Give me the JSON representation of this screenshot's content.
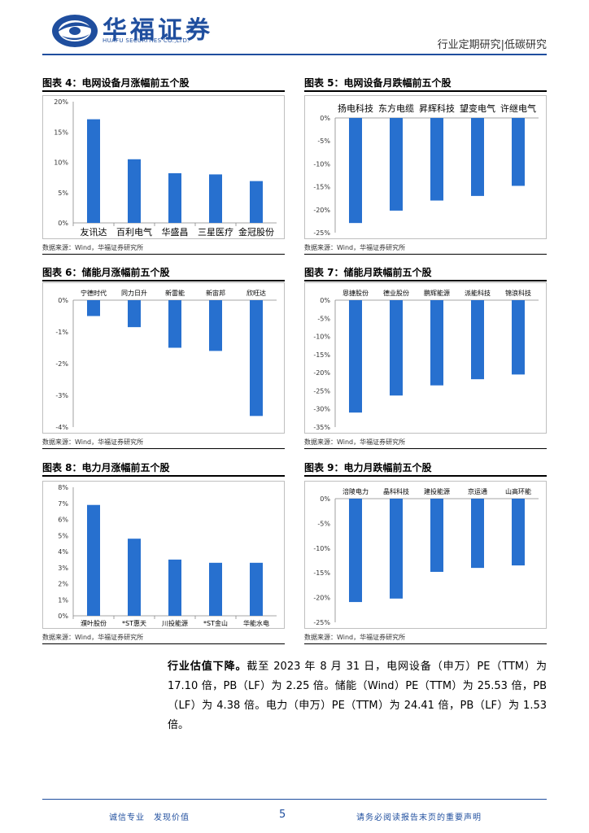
{
  "header": {
    "brand_cn": "华福证券",
    "brand_en": "HUAFU SECURITIES CO.,LTD.",
    "report_type": "行业定期研究|低碳研究"
  },
  "colors": {
    "brand": "#1f4e9e",
    "bar": "#2770cf"
  },
  "charts": [
    {
      "id": "c4",
      "title": "图表 4：电网设备月涨幅前五个股",
      "source": "数据来源：Wind，华福证券研究所",
      "chart_data": {
        "type": "bar",
        "labels_position": "bottom",
        "label_size": 11,
        "categories": [
          "友讯达",
          "百利电气",
          "华盛昌",
          "三星医疗",
          "金冠股份"
        ],
        "values": [
          17.1,
          10.5,
          8.2,
          8.0,
          6.9
        ],
        "ylim": [
          0,
          20
        ],
        "yticks": [
          0,
          5,
          10,
          15,
          20
        ],
        "ytick_labels": [
          "0%",
          "5%",
          "10%",
          "15%",
          "20%"
        ]
      }
    },
    {
      "id": "c5",
      "title": "图表 5：电网设备月跌幅前五个股",
      "source": "数据来源：Wind，华福证券研究所",
      "chart_data": {
        "type": "bar",
        "labels_position": "top",
        "label_size": 11,
        "categories": [
          "扬电科技",
          "东方电缆",
          "昇辉科技",
          "望变电气",
          "许继电气"
        ],
        "values": [
          -22.9,
          -20.2,
          -18.0,
          -17.0,
          -14.8
        ],
        "ylim": [
          -25,
          0
        ],
        "yticks": [
          0,
          -5,
          -10,
          -15,
          -20,
          -25
        ],
        "ytick_labels": [
          "0%",
          "-5%",
          "-10%",
          "-15%",
          "-20%",
          "-25%"
        ]
      }
    },
    {
      "id": "c6",
      "title": "图表 6：储能月涨幅前五个股",
      "source": "数据来源：Wind，华福证券研究所",
      "chart_data": {
        "type": "bar",
        "labels_position": "top",
        "label_size": 8,
        "categories": [
          "宁德时代",
          "同力日升",
          "新雷能",
          "新宙邦",
          "欣旺达"
        ],
        "values": [
          -0.5,
          -0.85,
          -1.5,
          -1.6,
          -3.65
        ],
        "ylim": [
          -4,
          0
        ],
        "yticks": [
          0,
          -1,
          -2,
          -3,
          -4
        ],
        "ytick_labels": [
          "0%",
          "-1%",
          "-2%",
          "-3%",
          "-4%"
        ]
      }
    },
    {
      "id": "c7",
      "title": "图表 7：储能月跌幅前五个股",
      "source": "数据来源：Wind，华福证券研究所",
      "chart_data": {
        "type": "bar",
        "labels_position": "top",
        "label_size": 8,
        "categories": [
          "恩捷股份",
          "德业股份",
          "鹏辉能源",
          "派能科技",
          "锦浪科技"
        ],
        "values": [
          -31.0,
          -26.3,
          -23.5,
          -21.8,
          -20.5
        ],
        "ylim": [
          -35,
          0
        ],
        "yticks": [
          0,
          -5,
          -10,
          -15,
          -20,
          -25,
          -30,
          -35
        ],
        "ytick_labels": [
          "0%",
          "-5%",
          "-10%",
          "-15%",
          "-20%",
          "-25%",
          "-30%",
          "-35%"
        ]
      }
    },
    {
      "id": "c8",
      "title": "图表 8：电力月涨幅前五个股",
      "source": "数据来源：Wind，华福证券研究所",
      "chart_data": {
        "type": "bar",
        "labels_position": "bottom",
        "label_size": 8,
        "categories": [
          "濮叶股份",
          "*ST惠天",
          "川投能源",
          "*ST金山",
          "华能水电"
        ],
        "values": [
          6.9,
          4.8,
          3.5,
          3.3,
          3.3
        ],
        "ylim": [
          0,
          8
        ],
        "yticks": [
          0,
          1,
          2,
          3,
          4,
          5,
          6,
          7,
          8
        ],
        "ytick_labels": [
          "0%",
          "1%",
          "2%",
          "3%",
          "4%",
          "5%",
          "6%",
          "7%",
          "8%"
        ]
      }
    },
    {
      "id": "c9",
      "title": "图表 9：电力月跌幅前五个股",
      "source": "数据来源：Wind，华福证券研究所",
      "chart_data": {
        "type": "bar",
        "labels_position": "top",
        "label_size": 8,
        "categories": [
          "涪陵电力",
          "晶科科技",
          "建投能源",
          "京运通",
          "山高环能"
        ],
        "values": [
          -20.9,
          -20.2,
          -14.8,
          -14.0,
          -13.5
        ],
        "ylim": [
          -25,
          0
        ],
        "yticks": [
          0,
          -5,
          -10,
          -15,
          -20,
          -25
        ],
        "ytick_labels": [
          "0%",
          "-5%",
          "-10%",
          "-15%",
          "-20%",
          "-25%"
        ]
      }
    }
  ],
  "paragraph": {
    "lead": "行业估值下降。",
    "body": "截至 2023 年 8 月 31 日，电网设备（申万）PE（TTM）为 17.10 倍，PB（LF）为 2.25 倍。储能（Wind）PE（TTM）为 25.53 倍，PB（LF）为 4.38 倍。电力（申万）PE（TTM）为 24.41 倍，PB（LF）为 1.53 倍。"
  },
  "footer": {
    "left": "诚信专业　发现价值",
    "page": "5",
    "right": "请务必阅读报告末页的重要声明"
  }
}
